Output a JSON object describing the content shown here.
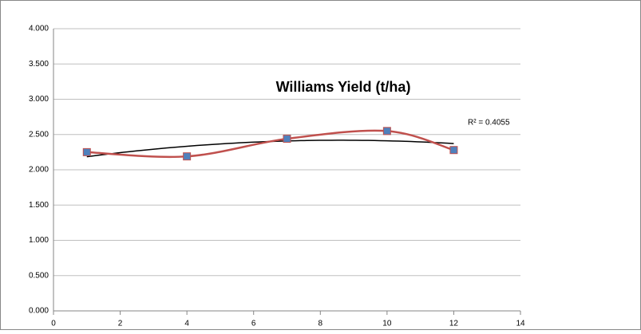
{
  "chart_data": {
    "type": "line",
    "title": "Williams Yield (t/ha)",
    "x": [
      1,
      4,
      7,
      10,
      12
    ],
    "series": [
      {
        "name": "Williams Yield (t/ha)",
        "color": "#c0504d",
        "marker_color": "#4f81bd",
        "values": [
          2.25,
          2.19,
          2.44,
          2.55,
          2.28
        ]
      }
    ],
    "smooth": true,
    "trendline": {
      "type": "polynomial",
      "order": 2,
      "color": "#000000",
      "label": "R² = 0.4055"
    },
    "xlim": [
      0,
      14
    ],
    "xticks": [
      0,
      2,
      4,
      6,
      8,
      10,
      12,
      14
    ],
    "ylim": [
      0,
      4
    ],
    "yticks": [
      {
        "value": 0,
        "label": "0.000"
      },
      {
        "value": 0.5,
        "label": "0.500"
      },
      {
        "value": 1,
        "label": "1.000"
      },
      {
        "value": 1.5,
        "label": "1.500"
      },
      {
        "value": 2,
        "label": "2.000"
      },
      {
        "value": 2.5,
        "label": "2.500"
      },
      {
        "value": 3,
        "label": "3.000"
      },
      {
        "value": 3.5,
        "label": "3.500"
      },
      {
        "value": 4,
        "label": "4.000"
      }
    ],
    "grid": true
  }
}
